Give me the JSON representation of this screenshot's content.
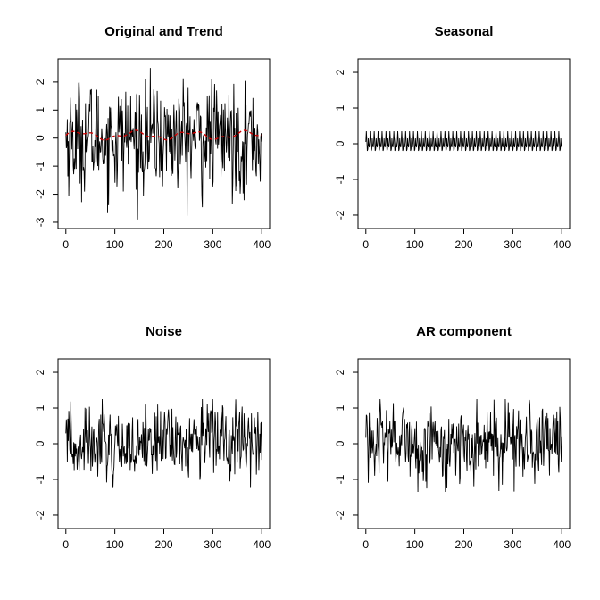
{
  "chart_data": [
    {
      "type": "line",
      "title": "Original and Trend",
      "xlim": [
        0,
        400
      ],
      "ylim": [
        -3,
        2.6
      ],
      "x_ticks": [
        0,
        100,
        200,
        300,
        400
      ],
      "y_ticks": [
        -3,
        -2,
        -1,
        0,
        1,
        2
      ],
      "series": [
        {
          "color": "#000000",
          "generator": "original",
          "n": 400,
          "amplitude_range": [
            -2.9,
            2.6
          ]
        },
        {
          "color": "#cc0000",
          "generator": "trend",
          "n": 400,
          "values_mean": 0.1,
          "amplitude_range": [
            -0.2,
            0.25
          ],
          "dashed": true
        }
      ]
    },
    {
      "type": "line",
      "title": "Seasonal",
      "xlim": [
        0,
        400
      ],
      "ylim": [
        -2.2,
        2.2
      ],
      "x_ticks": [
        0,
        100,
        200,
        300,
        400
      ],
      "y_ticks": [
        -2,
        -1,
        0,
        1,
        2
      ],
      "series": [
        {
          "color": "#000000",
          "generator": "seasonal",
          "n": 400,
          "period": 8,
          "amplitude_range": [
            -0.2,
            0.35
          ]
        }
      ]
    },
    {
      "type": "line",
      "title": "Noise",
      "xlim": [
        0,
        400
      ],
      "ylim": [
        -2.2,
        2.2
      ],
      "x_ticks": [
        0,
        100,
        200,
        300,
        400
      ],
      "y_ticks": [
        -2,
        -1,
        0,
        1,
        2
      ],
      "series": [
        {
          "color": "#000000",
          "generator": "noise",
          "n": 400,
          "amplitude_range": [
            -1.35,
            1.25
          ]
        }
      ]
    },
    {
      "type": "line",
      "title": "AR component",
      "xlim": [
        0,
        400
      ],
      "ylim": [
        -2.2,
        2.2
      ],
      "x_ticks": [
        0,
        100,
        200,
        300,
        400
      ],
      "y_ticks": [
        -2,
        -1,
        0,
        1,
        2
      ],
      "series": [
        {
          "color": "#000000",
          "generator": "noise",
          "n": 400,
          "amplitude_range": [
            -1.35,
            1.25
          ]
        }
      ]
    }
  ]
}
